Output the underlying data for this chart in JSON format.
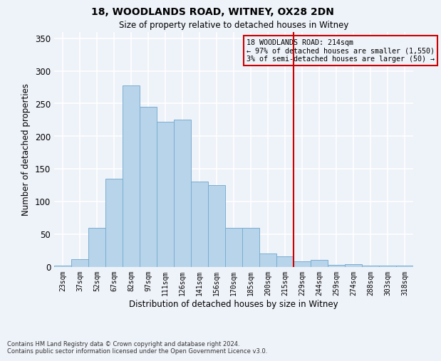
{
  "title_line1": "18, WOODLANDS ROAD, WITNEY, OX28 2DN",
  "title_line2": "Size of property relative to detached houses in Witney",
  "xlabel": "Distribution of detached houses by size in Witney",
  "ylabel": "Number of detached properties",
  "categories": [
    "23sqm",
    "37sqm",
    "52sqm",
    "67sqm",
    "82sqm",
    "97sqm",
    "111sqm",
    "126sqm",
    "141sqm",
    "156sqm",
    "170sqm",
    "185sqm",
    "200sqm",
    "215sqm",
    "229sqm",
    "244sqm",
    "259sqm",
    "274sqm",
    "288sqm",
    "303sqm",
    "318sqm"
  ],
  "values": [
    2,
    11,
    59,
    135,
    278,
    245,
    222,
    225,
    130,
    125,
    60,
    59,
    20,
    16,
    8,
    10,
    3,
    4,
    2,
    2,
    2
  ],
  "bar_color": "#b8d4ea",
  "bar_edge_color": "#7aaed0",
  "vline_x": 13.5,
  "vline_color": "#cc0000",
  "annotation_title": "18 WOODLANDS ROAD: 214sqm",
  "annotation_line2": "← 97% of detached houses are smaller (1,550)",
  "annotation_line3": "3% of semi-detached houses are larger (50) →",
  "annotation_box_color": "#cc0000",
  "ylim": [
    0,
    360
  ],
  "yticks": [
    0,
    50,
    100,
    150,
    200,
    250,
    300,
    350
  ],
  "footer_line1": "Contains HM Land Registry data © Crown copyright and database right 2024.",
  "footer_line2": "Contains public sector information licensed under the Open Government Licence v3.0.",
  "background_color": "#eef2f9",
  "grid_color": "#ffffff"
}
